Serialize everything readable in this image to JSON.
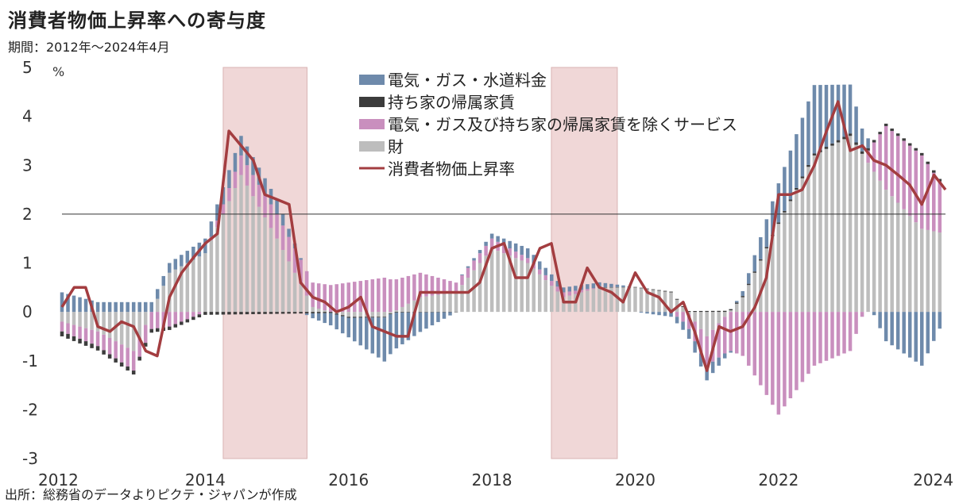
{
  "title": "消費者物価上昇率への寄与度",
  "subtitle": "期間：2012年～2024年4月",
  "source": "出所：総務省のデータよりピクテ・ジャパンが作成",
  "colors": {
    "utilities": "#6e8aab",
    "owner_rent": "#3c3c3c",
    "services": "#c98fbe",
    "goods": "#bdbdbd",
    "cpi_line": "#a33d40",
    "shade": "#f0d7d7",
    "negative_tick": "#cc2222"
  },
  "chart_data": {
    "type": "bar",
    "stacked": true,
    "unit_label": "%",
    "x_range": [
      2012.0,
      2024.33
    ],
    "ylim": [
      -3,
      5
    ],
    "y_ticks": [
      "5",
      "4",
      "3",
      "2",
      "1",
      "0",
      "-1",
      "-2",
      "-3"
    ],
    "x_ticks": [
      "2012",
      "2014",
      "2016",
      "2018",
      "2020",
      "2022",
      "2024"
    ],
    "reference_line": 2,
    "shaded_periods": [
      [
        2014.25,
        2015.42
      ],
      [
        2018.83,
        2019.75
      ]
    ],
    "legend_placement": "top-center",
    "series": [
      {
        "name": "電気・ガス・水道料金",
        "kind": "bar",
        "color_key": "utilities",
        "x": [
          2012.0,
          2012.5,
          2013.0,
          2013.5,
          2014.0,
          2014.5,
          2015.0,
          2015.5,
          2016.0,
          2016.5,
          2017.0,
          2017.5,
          2018.0,
          2018.5,
          2019.0,
          2019.5,
          2020.0,
          2020.5,
          2021.0,
          2021.5,
          2022.0,
          2022.5,
          2023.0,
          2023.5,
          2024.0,
          2024.33
        ],
        "values": [
          0.4,
          0.2,
          0.2,
          0.2,
          0.3,
          0.4,
          0.3,
          -0.1,
          -0.4,
          -0.9,
          -0.4,
          0.0,
          0.1,
          0.2,
          0.1,
          0.1,
          0.0,
          -0.1,
          -0.3,
          0.1,
          0.8,
          1.4,
          1.0,
          -0.6,
          -1.1,
          -0.1
        ]
      },
      {
        "name": "持ち家の帰属家賃",
        "kind": "bar",
        "color_key": "owner_rent",
        "x": [
          2012.0,
          2013.0,
          2014.0,
          2015.0,
          2016.0,
          2017.0,
          2018.0,
          2019.0,
          2020.0,
          2021.0,
          2022.0,
          2023.0,
          2024.0
        ],
        "values": [
          -0.1,
          -0.08,
          -0.06,
          -0.04,
          -0.02,
          -0.01,
          0.0,
          0.0,
          0.01,
          0.02,
          0.03,
          0.05,
          0.05
        ]
      },
      {
        "name": "電気・ガス及び持ち家の帰属家賃を除くサービス",
        "kind": "bar",
        "color_key": "services",
        "x": [
          2012.0,
          2012.5,
          2013.0,
          2013.5,
          2014.0,
          2014.5,
          2015.0,
          2015.5,
          2016.0,
          2016.5,
          2017.0,
          2017.5,
          2018.0,
          2018.5,
          2019.0,
          2019.5,
          2020.0,
          2020.5,
          2021.0,
          2021.5,
          2022.0,
          2022.5,
          2023.0,
          2023.5,
          2024.0,
          2024.33
        ],
        "values": [
          -0.2,
          -0.3,
          -0.4,
          -0.3,
          0.0,
          0.4,
          0.5,
          0.5,
          0.6,
          0.7,
          0.5,
          0.2,
          0.2,
          0.1,
          0.1,
          0.0,
          0.0,
          0.0,
          -0.6,
          -0.9,
          -2.1,
          -1.1,
          -0.8,
          1.3,
          1.5,
          0.9
        ]
      },
      {
        "name": "財",
        "kind": "bar",
        "color_key": "goods",
        "x": [
          2012.0,
          2012.5,
          2013.0,
          2013.5,
          2014.0,
          2014.5,
          2015.0,
          2015.5,
          2016.0,
          2016.5,
          2017.0,
          2017.5,
          2018.0,
          2018.5,
          2019.0,
          2019.5,
          2020.0,
          2020.5,
          2021.0,
          2021.5,
          2022.0,
          2022.5,
          2023.0,
          2023.5,
          2024.0,
          2024.33
        ],
        "values": [
          -0.2,
          -0.4,
          -0.8,
          0.8,
          1.2,
          2.8,
          1.5,
          0.1,
          -0.1,
          -0.1,
          0.3,
          0.4,
          1.3,
          1.0,
          0.3,
          0.5,
          0.5,
          0.4,
          -0.5,
          0.3,
          1.8,
          3.2,
          3.6,
          2.5,
          1.7,
          1.6
        ]
      },
      {
        "name": "消費者物価上昇率",
        "kind": "line",
        "color_key": "cpi_line",
        "x": [
          2012.0,
          2012.17,
          2012.33,
          2012.5,
          2012.67,
          2012.83,
          2013.0,
          2013.17,
          2013.33,
          2013.5,
          2013.67,
          2013.83,
          2014.0,
          2014.17,
          2014.33,
          2014.5,
          2014.67,
          2014.83,
          2015.0,
          2015.17,
          2015.33,
          2015.5,
          2015.67,
          2015.83,
          2016.0,
          2016.17,
          2016.33,
          2016.5,
          2016.67,
          2016.83,
          2017.0,
          2017.17,
          2017.33,
          2017.5,
          2017.67,
          2017.83,
          2018.0,
          2018.17,
          2018.33,
          2018.5,
          2018.67,
          2018.83,
          2019.0,
          2019.17,
          2019.33,
          2019.5,
          2019.67,
          2019.83,
          2020.0,
          2020.17,
          2020.33,
          2020.5,
          2020.67,
          2020.83,
          2021.0,
          2021.17,
          2021.33,
          2021.5,
          2021.67,
          2021.83,
          2022.0,
          2022.17,
          2022.33,
          2022.5,
          2022.67,
          2022.83,
          2023.0,
          2023.17,
          2023.33,
          2023.5,
          2023.67,
          2023.83,
          2024.0,
          2024.17,
          2024.33
        ],
        "values": [
          0.1,
          0.5,
          0.5,
          -0.3,
          -0.4,
          -0.2,
          -0.3,
          -0.8,
          -0.9,
          0.3,
          0.8,
          1.1,
          1.4,
          1.6,
          3.7,
          3.4,
          3.1,
          2.4,
          2.3,
          2.2,
          0.6,
          0.3,
          0.2,
          0.0,
          0.1,
          0.3,
          -0.3,
          -0.4,
          -0.5,
          -0.5,
          0.4,
          0.4,
          0.4,
          0.4,
          0.4,
          0.6,
          1.3,
          1.4,
          0.7,
          0.7,
          1.3,
          1.4,
          0.2,
          0.2,
          0.9,
          0.5,
          0.4,
          0.2,
          0.8,
          0.4,
          0.3,
          0.0,
          0.2,
          -0.4,
          -1.2,
          -0.3,
          -0.4,
          -0.3,
          0.1,
          0.7,
          2.4,
          2.4,
          2.5,
          3.0,
          3.7,
          4.3,
          3.3,
          3.4,
          3.1,
          3.0,
          2.8,
          2.6,
          2.2,
          2.8,
          2.5
        ]
      }
    ]
  }
}
